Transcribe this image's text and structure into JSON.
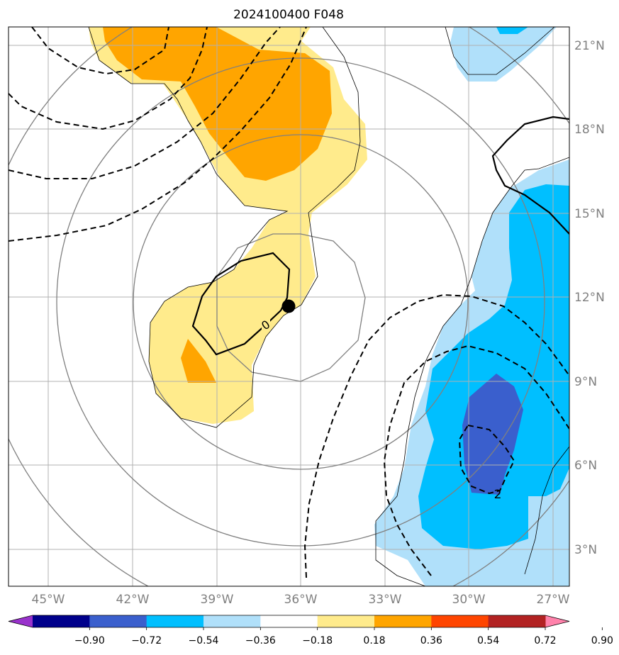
{
  "chart_data": {
    "type": "map",
    "title": "2024100400 F048",
    "x_tick_labels": [
      "45°W",
      "42°W",
      "39°W",
      "36°W",
      "33°W",
      "30°W",
      "27°W"
    ],
    "y_tick_labels": [
      "3°N",
      "6°N",
      "9°N",
      "12°N",
      "15°N",
      "18°N",
      "21°N"
    ],
    "lon_ticks": [
      -45,
      -42,
      -39,
      -36,
      -33,
      -30,
      -27
    ],
    "lat_ticks": [
      3,
      6,
      9,
      12,
      15,
      18,
      21
    ],
    "lon_range": [
      -46.4,
      -26.4
    ],
    "lat_range": [
      1.2,
      21.6
    ],
    "grid": true,
    "storm_center": {
      "lon": -36.4,
      "lat": 11.65
    },
    "contour_labels": [
      {
        "text": "0",
        "lon": -37.2,
        "lat": 10.95
      },
      {
        "text": "2",
        "lon": -29.0,
        "lat": 4.9
      }
    ],
    "colorbar": {
      "boundaries": [
        -0.9,
        -0.72,
        -0.54,
        -0.36,
        -0.18,
        0.18,
        0.36,
        0.54,
        0.72,
        0.9
      ],
      "tick_labels": [
        "−0.90",
        "−0.72",
        "−0.54",
        "−0.36",
        "−0.18",
        "0.18",
        "0.36",
        "0.54",
        "0.72",
        "0.90"
      ],
      "colors": [
        "#9932cc",
        "#00008b",
        "#3a5fcd",
        "#00bfff",
        "#b0e0fa",
        "#ffffff",
        "#ffeb8c",
        "#ffa500",
        "#ff4500",
        "#b22222",
        "#ff82ab"
      ],
      "extend": "both"
    }
  }
}
